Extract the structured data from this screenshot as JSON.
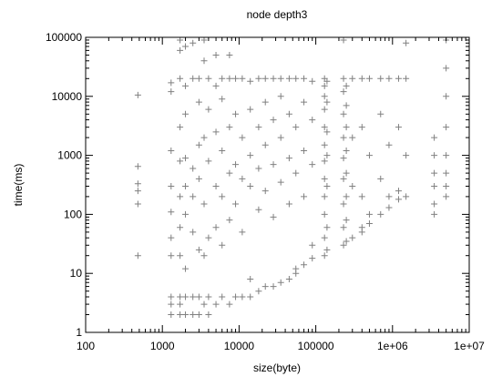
{
  "chart_data": {
    "type": "scatter",
    "title": "node depth3",
    "xlabel": "size(byte)",
    "ylabel": "time(ms)",
    "xscale": "log",
    "yscale": "log",
    "xlim": [
      100,
      10000000
    ],
    "ylim": [
      1,
      100000
    ],
    "x_ticks": [
      100,
      1000,
      10000,
      100000,
      1000000,
      10000000
    ],
    "x_tick_labels": [
      "100",
      "1000",
      "10000",
      "100000",
      "1e+06",
      "1e+07"
    ],
    "y_ticks": [
      1,
      10,
      100,
      1000,
      10000,
      100000
    ],
    "y_tick_labels": [
      "1",
      "10",
      "100",
      "1000",
      "10000",
      "100000"
    ],
    "grid": false,
    "legend": "none",
    "marker": "+",
    "color": "#808080",
    "points": [
      [
        480,
        10500
      ],
      [
        480,
        650
      ],
      [
        480,
        330
      ],
      [
        480,
        250
      ],
      [
        480,
        150
      ],
      [
        480,
        20
      ],
      [
        1300,
        17000
      ],
      [
        1300,
        12000
      ],
      [
        1300,
        1200
      ],
      [
        1300,
        300
      ],
      [
        1300,
        110
      ],
      [
        1300,
        40
      ],
      [
        1300,
        20
      ],
      [
        1300,
        4
      ],
      [
        1300,
        3
      ],
      [
        1300,
        2
      ],
      [
        1700,
        90000
      ],
      [
        1700,
        60000
      ],
      [
        1700,
        20000
      ],
      [
        1700,
        3000
      ],
      [
        1700,
        800
      ],
      [
        1700,
        200
      ],
      [
        1700,
        60
      ],
      [
        1700,
        20
      ],
      [
        1700,
        4
      ],
      [
        1700,
        3
      ],
      [
        1700,
        2
      ],
      [
        2000,
        70000
      ],
      [
        2000,
        15000
      ],
      [
        2000,
        5000
      ],
      [
        2000,
        900
      ],
      [
        2000,
        300
      ],
      [
        2000,
        100
      ],
      [
        2000,
        12
      ],
      [
        2000,
        4
      ],
      [
        2000,
        2
      ],
      [
        2500,
        80000
      ],
      [
        2500,
        20000
      ],
      [
        2500,
        600
      ],
      [
        2500,
        200
      ],
      [
        2500,
        50
      ],
      [
        2500,
        4
      ],
      [
        2500,
        2
      ],
      [
        3000,
        20000
      ],
      [
        3000,
        8000
      ],
      [
        3000,
        1500
      ],
      [
        3000,
        400
      ],
      [
        3000,
        25
      ],
      [
        3000,
        4
      ],
      [
        3000,
        2
      ],
      [
        3500,
        90000
      ],
      [
        3500,
        40000
      ],
      [
        3500,
        2000
      ],
      [
        3500,
        150
      ],
      [
        3500,
        20
      ],
      [
        3500,
        3
      ],
      [
        4000,
        20000
      ],
      [
        4000,
        6000
      ],
      [
        4000,
        800
      ],
      [
        4000,
        40
      ],
      [
        4000,
        4
      ],
      [
        4000,
        2
      ],
      [
        5000,
        50000
      ],
      [
        5000,
        15000
      ],
      [
        5000,
        2500
      ],
      [
        5000,
        300
      ],
      [
        5000,
        60
      ],
      [
        5000,
        3
      ],
      [
        6000,
        20000
      ],
      [
        6000,
        9000
      ],
      [
        6000,
        1200
      ],
      [
        6000,
        200
      ],
      [
        6000,
        30
      ],
      [
        6000,
        4
      ],
      [
        7500,
        50000
      ],
      [
        7500,
        20000
      ],
      [
        7500,
        3000
      ],
      [
        7500,
        500
      ],
      [
        7500,
        80
      ],
      [
        7500,
        3
      ],
      [
        9000,
        20000
      ],
      [
        9000,
        5000
      ],
      [
        9000,
        700
      ],
      [
        9000,
        150
      ],
      [
        9000,
        4
      ],
      [
        11000,
        20000
      ],
      [
        11000,
        2000
      ],
      [
        11000,
        400
      ],
      [
        11000,
        50
      ],
      [
        11000,
        4
      ],
      [
        14000,
        18000
      ],
      [
        14000,
        6000
      ],
      [
        14000,
        1000
      ],
      [
        14000,
        300
      ],
      [
        14000,
        8
      ],
      [
        14000,
        4
      ],
      [
        18000,
        20000
      ],
      [
        18000,
        3000
      ],
      [
        18000,
        600
      ],
      [
        18000,
        120
      ],
      [
        18000,
        5
      ],
      [
        22000,
        20000
      ],
      [
        22000,
        8000
      ],
      [
        22000,
        1500
      ],
      [
        22000,
        250
      ],
      [
        22000,
        6
      ],
      [
        28000,
        20000
      ],
      [
        28000,
        4000
      ],
      [
        28000,
        700
      ],
      [
        28000,
        90
      ],
      [
        28000,
        6
      ],
      [
        35000,
        20000
      ],
      [
        35000,
        10000
      ],
      [
        35000,
        2000
      ],
      [
        35000,
        350
      ],
      [
        35000,
        7
      ],
      [
        45000,
        20000
      ],
      [
        45000,
        5000
      ],
      [
        45000,
        900
      ],
      [
        45000,
        150
      ],
      [
        45000,
        8
      ],
      [
        55000,
        20000
      ],
      [
        55000,
        3000
      ],
      [
        55000,
        500
      ],
      [
        55000,
        12
      ],
      [
        55000,
        10
      ],
      [
        70000,
        20000
      ],
      [
        70000,
        8000
      ],
      [
        70000,
        1200
      ],
      [
        70000,
        200
      ],
      [
        70000,
        14
      ],
      [
        90000,
        18000
      ],
      [
        90000,
        4000
      ],
      [
        90000,
        700
      ],
      [
        90000,
        30
      ],
      [
        90000,
        18
      ],
      [
        130000,
        20000
      ],
      [
        130000,
        15000
      ],
      [
        130000,
        10000
      ],
      [
        130000,
        6000
      ],
      [
        130000,
        3000
      ],
      [
        130000,
        1500
      ],
      [
        130000,
        800
      ],
      [
        130000,
        400
      ],
      [
        130000,
        200
      ],
      [
        130000,
        100
      ],
      [
        130000,
        40
      ],
      [
        130000,
        20
      ],
      [
        140000,
        18000
      ],
      [
        140000,
        8000
      ],
      [
        140000,
        2500
      ],
      [
        140000,
        1000
      ],
      [
        140000,
        300
      ],
      [
        140000,
        60
      ],
      [
        140000,
        25
      ],
      [
        230000,
        90000
      ],
      [
        230000,
        20000
      ],
      [
        230000,
        12000
      ],
      [
        230000,
        5000
      ],
      [
        230000,
        2000
      ],
      [
        230000,
        900
      ],
      [
        230000,
        400
      ],
      [
        230000,
        150
      ],
      [
        230000,
        60
      ],
      [
        230000,
        30
      ],
      [
        250000,
        15000
      ],
      [
        250000,
        7000
      ],
      [
        250000,
        3000
      ],
      [
        250000,
        1200
      ],
      [
        250000,
        500
      ],
      [
        250000,
        200
      ],
      [
        250000,
        80
      ],
      [
        250000,
        35
      ],
      [
        300000,
        20000
      ],
      [
        300000,
        2000
      ],
      [
        300000,
        300
      ],
      [
        300000,
        40
      ],
      [
        400000,
        20000
      ],
      [
        400000,
        3000
      ],
      [
        400000,
        200
      ],
      [
        400000,
        60
      ],
      [
        400000,
        50
      ],
      [
        500000,
        20000
      ],
      [
        500000,
        1000
      ],
      [
        500000,
        100
      ],
      [
        500000,
        70
      ],
      [
        700000,
        20000
      ],
      [
        700000,
        5000
      ],
      [
        700000,
        400
      ],
      [
        700000,
        100
      ],
      [
        900000,
        20000
      ],
      [
        900000,
        1500
      ],
      [
        900000,
        200
      ],
      [
        900000,
        130
      ],
      [
        1200000,
        20000
      ],
      [
        1200000,
        3000
      ],
      [
        1200000,
        250
      ],
      [
        1200000,
        180
      ],
      [
        1500000,
        80000
      ],
      [
        1500000,
        20000
      ],
      [
        1500000,
        1000
      ],
      [
        1500000,
        200
      ],
      [
        3500000,
        2000
      ],
      [
        3500000,
        1000
      ],
      [
        3500000,
        500
      ],
      [
        3500000,
        300
      ],
      [
        3500000,
        150
      ],
      [
        3500000,
        100
      ],
      [
        5000000,
        90000
      ],
      [
        5000000,
        30000
      ],
      [
        5000000,
        10000
      ],
      [
        5000000,
        3000
      ],
      [
        5000000,
        1000
      ],
      [
        5000000,
        500
      ],
      [
        5000000,
        300
      ],
      [
        5000000,
        200
      ]
    ]
  }
}
